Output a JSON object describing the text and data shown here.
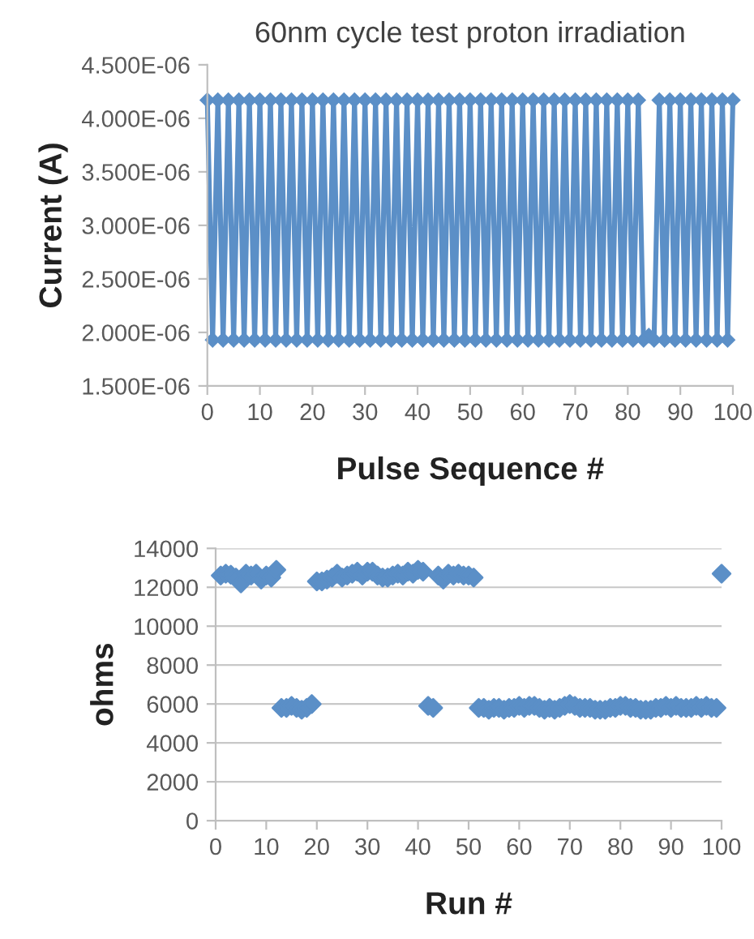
{
  "chart_data": [
    {
      "type": "line",
      "title": "60nm cycle test proton irradiation",
      "xlabel": "Pulse Sequence #",
      "ylabel": "Current (A)",
      "marker": "diamond",
      "line_style": "solid",
      "grid": false,
      "x": [
        0,
        1,
        2,
        3,
        4,
        5,
        6,
        7,
        8,
        9,
        10,
        11,
        12,
        13,
        14,
        15,
        16,
        17,
        18,
        19,
        20,
        21,
        22,
        23,
        24,
        25,
        26,
        27,
        28,
        29,
        30,
        31,
        32,
        33,
        34,
        35,
        36,
        37,
        38,
        39,
        40,
        41,
        42,
        43,
        44,
        45,
        46,
        47,
        48,
        49,
        50,
        51,
        52,
        53,
        54,
        55,
        56,
        57,
        58,
        59,
        60,
        61,
        62,
        63,
        64,
        65,
        66,
        67,
        68,
        69,
        70,
        71,
        72,
        73,
        74,
        75,
        76,
        77,
        78,
        79,
        80,
        81,
        82,
        83,
        84,
        85,
        86,
        87,
        88,
        89,
        90,
        91,
        92,
        93,
        94,
        95,
        96,
        97,
        98,
        99,
        100
      ],
      "series": [
        {
          "color": "#5b8fc7",
          "values": [
            4.17e-06,
            1.93e-06,
            4.17e-06,
            1.93e-06,
            4.17e-06,
            1.93e-06,
            4.17e-06,
            1.93e-06,
            4.17e-06,
            1.93e-06,
            4.17e-06,
            1.93e-06,
            4.17e-06,
            1.93e-06,
            4.17e-06,
            1.93e-06,
            4.17e-06,
            1.93e-06,
            4.17e-06,
            1.93e-06,
            4.17e-06,
            1.93e-06,
            4.17e-06,
            1.93e-06,
            4.17e-06,
            1.93e-06,
            4.17e-06,
            1.93e-06,
            4.17e-06,
            1.93e-06,
            4.17e-06,
            1.93e-06,
            4.17e-06,
            1.93e-06,
            4.17e-06,
            1.93e-06,
            4.17e-06,
            1.93e-06,
            4.17e-06,
            1.93e-06,
            4.17e-06,
            1.93e-06,
            4.17e-06,
            1.93e-06,
            4.17e-06,
            1.93e-06,
            4.17e-06,
            1.93e-06,
            4.17e-06,
            1.93e-06,
            4.17e-06,
            1.93e-06,
            4.17e-06,
            1.93e-06,
            4.17e-06,
            1.93e-06,
            4.17e-06,
            1.93e-06,
            4.17e-06,
            1.93e-06,
            4.17e-06,
            1.93e-06,
            4.17e-06,
            1.93e-06,
            4.17e-06,
            1.93e-06,
            4.17e-06,
            1.93e-06,
            4.17e-06,
            1.93e-06,
            4.17e-06,
            1.93e-06,
            4.17e-06,
            1.93e-06,
            4.17e-06,
            1.93e-06,
            4.17e-06,
            1.93e-06,
            4.17e-06,
            1.93e-06,
            4.17e-06,
            1.93e-06,
            4.17e-06,
            1.93e-06,
            1.97e-06,
            1.93e-06,
            4.17e-06,
            1.93e-06,
            4.17e-06,
            1.93e-06,
            4.17e-06,
            1.93e-06,
            4.17e-06,
            1.93e-06,
            4.17e-06,
            1.93e-06,
            4.17e-06,
            1.93e-06,
            4.17e-06,
            1.93e-06,
            4.17e-06
          ]
        }
      ],
      "xlim": [
        0,
        100
      ],
      "xticks": [
        0,
        10,
        20,
        30,
        40,
        50,
        60,
        70,
        80,
        90,
        100
      ],
      "ylim": [
        1.5e-06,
        4.5e-06
      ],
      "yticks": [
        {
          "value": 1.5e-06,
          "label": "1.500E-06"
        },
        {
          "value": 2e-06,
          "label": "2.000E-06"
        },
        {
          "value": 2.5e-06,
          "label": "2.500E-06"
        },
        {
          "value": 3e-06,
          "label": "3.000E-06"
        },
        {
          "value": 3.5e-06,
          "label": "3.500E-06"
        },
        {
          "value": 4e-06,
          "label": "4.000E-06"
        },
        {
          "value": 4.5e-06,
          "label": "4.500E-06"
        }
      ]
    },
    {
      "type": "scatter",
      "xlabel": "Run #",
      "ylabel": "ohms",
      "marker": "diamond",
      "grid": "y",
      "x": [
        1,
        2,
        3,
        4,
        5,
        6,
        7,
        8,
        9,
        10,
        11,
        12,
        13,
        14,
        15,
        16,
        17,
        18,
        19,
        20,
        21,
        22,
        23,
        24,
        25,
        26,
        27,
        28,
        29,
        30,
        31,
        32,
        33,
        34,
        35,
        36,
        37,
        38,
        39,
        40,
        41,
        42,
        43,
        44,
        45,
        46,
        47,
        48,
        49,
        50,
        51,
        52,
        53,
        54,
        55,
        56,
        57,
        58,
        59,
        60,
        61,
        62,
        63,
        64,
        65,
        66,
        67,
        68,
        69,
        70,
        71,
        72,
        73,
        74,
        75,
        76,
        77,
        78,
        79,
        80,
        81,
        82,
        83,
        84,
        85,
        86,
        87,
        88,
        89,
        90,
        91,
        92,
        93,
        94,
        95,
        96,
        97,
        98,
        99,
        100
      ],
      "series": [
        {
          "color": "#5b8fc7",
          "values": [
            12600,
            12700,
            12650,
            12500,
            12200,
            12700,
            12600,
            12700,
            12400,
            12600,
            12500,
            12900,
            5800,
            5800,
            5900,
            5800,
            5700,
            5800,
            6000,
            12300,
            12300,
            12400,
            12500,
            12700,
            12500,
            12600,
            12700,
            12800,
            12600,
            12800,
            12800,
            12600,
            12500,
            12500,
            12600,
            12700,
            12600,
            12800,
            12700,
            12900,
            12800,
            5900,
            5800,
            12600,
            12400,
            12700,
            12600,
            12700,
            12600,
            12600,
            12500,
            5800,
            5800,
            5700,
            5800,
            5800,
            5700,
            5800,
            5800,
            5900,
            5800,
            5900,
            5900,
            5800,
            5700,
            5800,
            5700,
            5800,
            5900,
            6000,
            5900,
            5800,
            5800,
            5800,
            5700,
            5700,
            5700,
            5800,
            5800,
            5900,
            5900,
            5800,
            5800,
            5700,
            5700,
            5700,
            5800,
            5800,
            5900,
            5800,
            5900,
            5800,
            5800,
            5800,
            5900,
            5800,
            5900,
            5800,
            5800,
            12700
          ]
        }
      ],
      "xlim": [
        0,
        100
      ],
      "xticks": [
        0,
        10,
        20,
        30,
        40,
        50,
        60,
        70,
        80,
        90,
        100
      ],
      "ylim": [
        0,
        14000
      ],
      "yticks": [
        0,
        2000,
        4000,
        6000,
        8000,
        10000,
        12000,
        14000
      ]
    }
  ]
}
